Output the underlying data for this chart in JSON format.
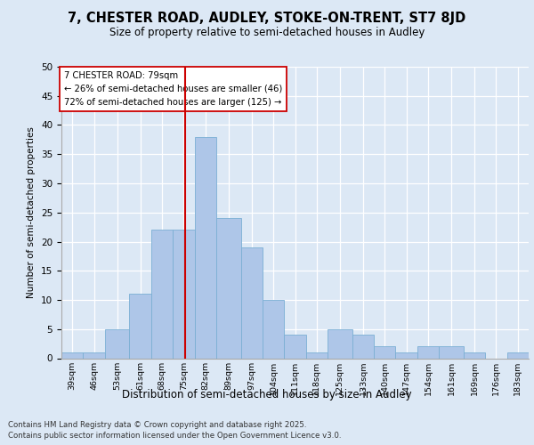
{
  "title": "7, CHESTER ROAD, AUDLEY, STOKE-ON-TRENT, ST7 8JD",
  "subtitle": "Size of property relative to semi-detached houses in Audley",
  "xlabel": "Distribution of semi-detached houses by size in Audley",
  "ylabel": "Number of semi-detached properties",
  "bins": [
    "39sqm",
    "46sqm",
    "53sqm",
    "61sqm",
    "68sqm",
    "75sqm",
    "82sqm",
    "89sqm",
    "97sqm",
    "104sqm",
    "111sqm",
    "118sqm",
    "125sqm",
    "133sqm",
    "140sqm",
    "147sqm",
    "154sqm",
    "161sqm",
    "169sqm",
    "176sqm",
    "183sqm"
  ],
  "bin_edges": [
    39,
    46,
    53,
    61,
    68,
    75,
    82,
    89,
    97,
    104,
    111,
    118,
    125,
    133,
    140,
    147,
    154,
    161,
    169,
    176,
    183
  ],
  "values": [
    1,
    1,
    5,
    11,
    22,
    22,
    38,
    24,
    19,
    10,
    4,
    1,
    5,
    4,
    2,
    1,
    2,
    2,
    1,
    0,
    1
  ],
  "bar_color": "#aec6e8",
  "bar_edge_color": "#7bafd4",
  "property_value": 79,
  "property_line_color": "#cc0000",
  "annotation_title": "7 CHESTER ROAD: 79sqm",
  "annotation_line1": "← 26% of semi-detached houses are smaller (46)",
  "annotation_line2": "72% of semi-detached houses are larger (125) →",
  "ylim": [
    0,
    50
  ],
  "yticks": [
    0,
    5,
    10,
    15,
    20,
    25,
    30,
    35,
    40,
    45,
    50
  ],
  "footer_line1": "Contains HM Land Registry data © Crown copyright and database right 2025.",
  "footer_line2": "Contains public sector information licensed under the Open Government Licence v3.0.",
  "bg_color": "#dce8f5",
  "plot_bg_color": "#dce8f5"
}
